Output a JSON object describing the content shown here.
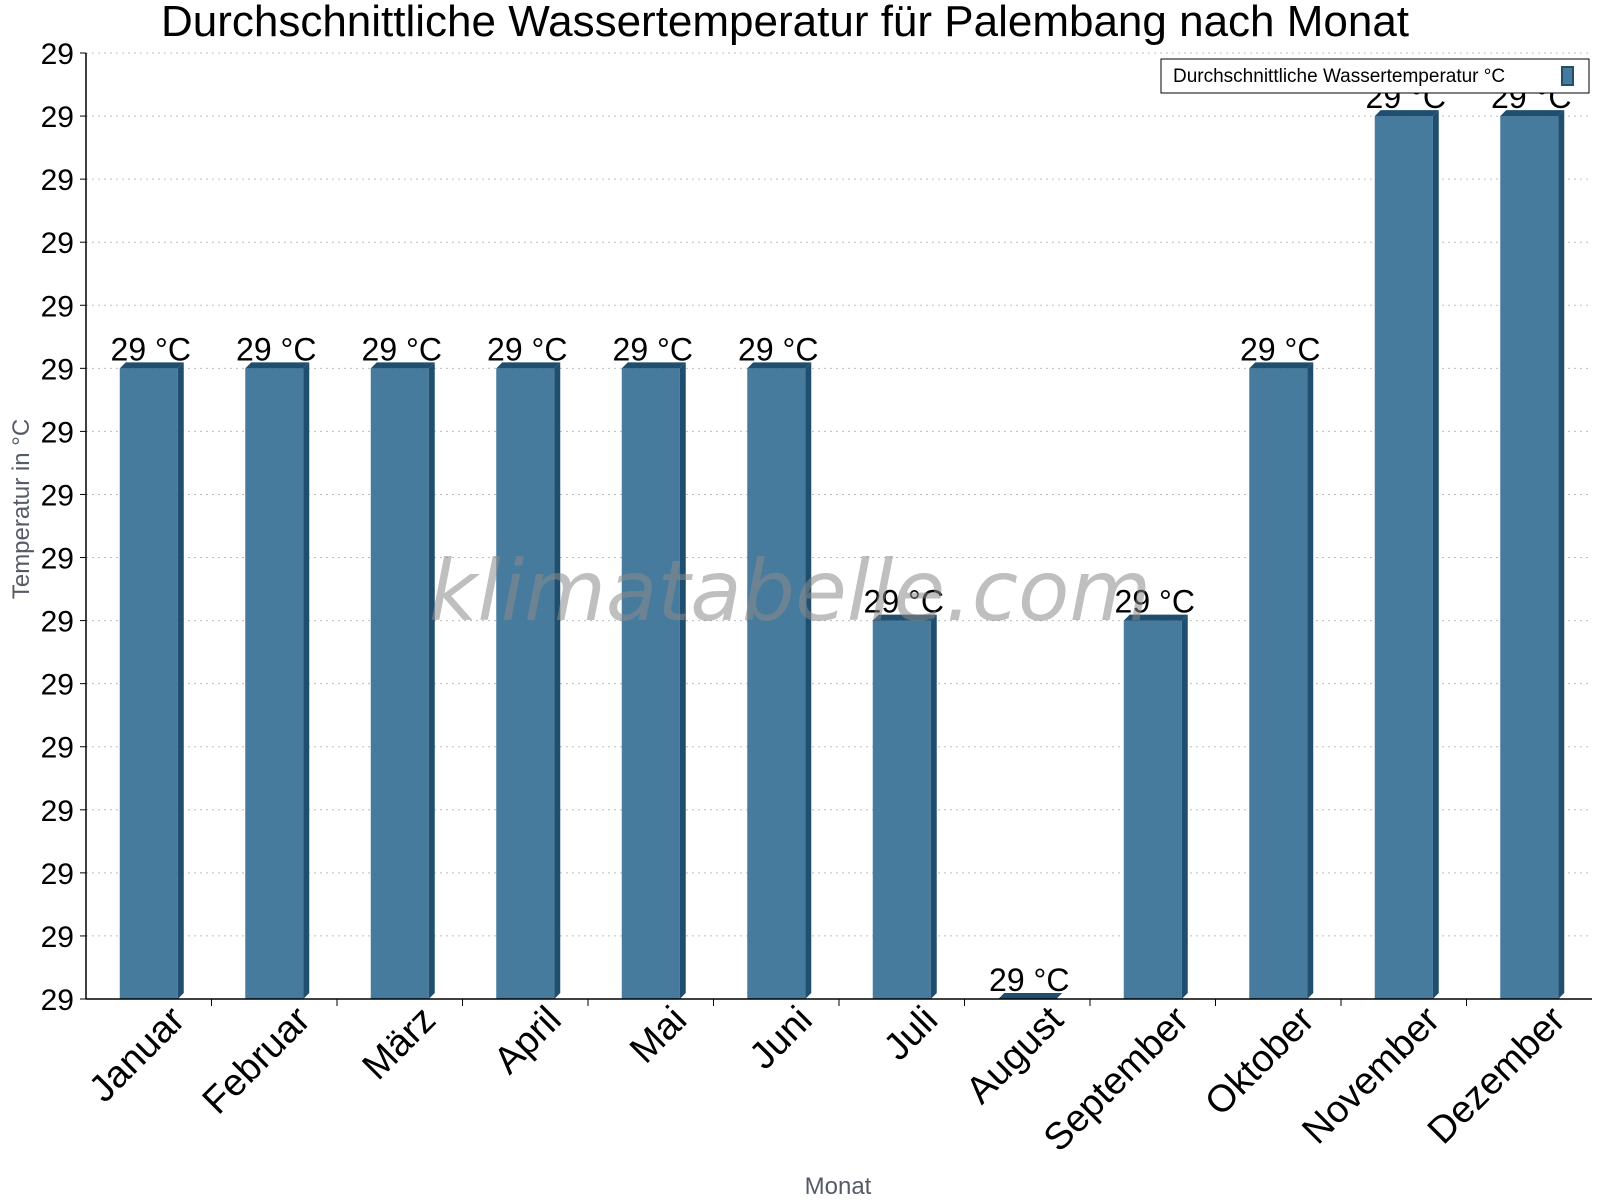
{
  "chart_data": {
    "type": "bar",
    "title": "Durchschnittliche Wassertemperatur für Palembang nach Monat",
    "xlabel": "Monat",
    "ylabel": "Temperatur in °C",
    "categories": [
      "Januar",
      "Februar",
      "März",
      "April",
      "Mai",
      "Juni",
      "Juli",
      "August",
      "September",
      "Oktober",
      "November",
      "Dezember"
    ],
    "series": [
      {
        "name": "Durchschnittliche Wassertemperatur °C",
        "values": [
          29.2,
          29.2,
          29.2,
          29.2,
          29.2,
          29.2,
          29.1,
          28.95,
          29.1,
          29.2,
          29.3,
          29.3
        ],
        "labels": [
          "29 °C",
          "29 °C",
          "29 °C",
          "29 °C",
          "29 °C",
          "29 °C",
          "29 °C",
          "29 °C",
          "29 °C",
          "29 °C",
          "29 °C",
          "29 °C"
        ]
      }
    ],
    "ylim": [
      28.95,
      29.325
    ],
    "yticks": [
      28.95,
      28.975,
      29.0,
      29.025,
      29.05,
      29.075,
      29.1,
      29.125,
      29.15,
      29.175,
      29.2,
      29.225,
      29.25,
      29.275,
      29.3,
      29.325
    ],
    "ytick_labels": [
      "29",
      "29",
      "29",
      "29",
      "29",
      "29",
      "29",
      "29",
      "29",
      "29",
      "29",
      "29",
      "29",
      "29",
      "29",
      "29"
    ],
    "grid": true,
    "legend_position": "top-right",
    "bar_color": "#467b9e",
    "bar_edge_color": "#1f4e6e",
    "watermark": "klimatabelle.com"
  }
}
